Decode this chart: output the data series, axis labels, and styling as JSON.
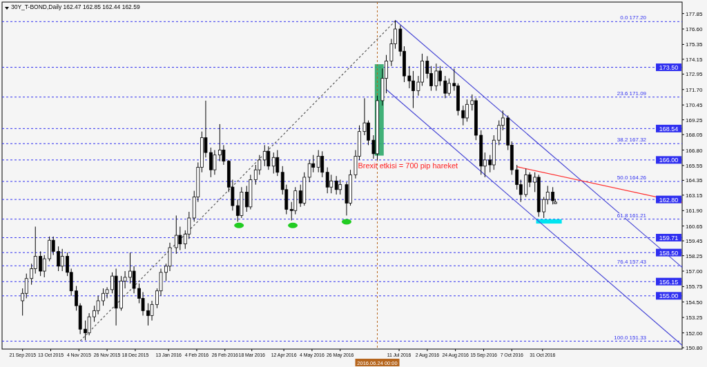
{
  "chart_data": {
    "type": "candlestick",
    "title": "30Y_T-BOND,Daily  162.47 162.85 162.44 162.59",
    "xlim": [
      "2015-09-05",
      "2017-02-17"
    ],
    "xticks": [
      {
        "value": "2015-09-21",
        "label": "21 Sep 2015"
      },
      {
        "value": "2015-10-13",
        "label": "13 Oct 2015"
      },
      {
        "value": "2015-11-04",
        "label": "4 Nov 2015"
      },
      {
        "value": "2015-11-26",
        "label": "26 Nov 2015"
      },
      {
        "value": "2015-12-18",
        "label": "18 Dec 2015"
      },
      {
        "value": "2016-01-13",
        "label": "13 Jan 2016"
      },
      {
        "value": "2016-02-04",
        "label": "4 Feb 2016"
      },
      {
        "value": "2016-02-26",
        "label": "26 Feb 2016"
      },
      {
        "value": "2016-03-18",
        "label": "18 Mar 2016"
      },
      {
        "value": "2016-04-12",
        "label": "12 Apr 2016"
      },
      {
        "value": "2016-05-04",
        "label": "4 May 2016"
      },
      {
        "value": "2016-05-26",
        "label": "26 May 2016"
      },
      {
        "value": "2016-07-11",
        "label": "11 Jul 2016"
      },
      {
        "value": "2016-08-02",
        "label": "2 Aug 2016"
      },
      {
        "value": "2016-08-24",
        "label": "24 Aug 2016"
      },
      {
        "value": "2016-09-15",
        "label": "15 Sep 2016"
      },
      {
        "value": "2016-10-07",
        "label": "7 Oct 2016"
      },
      {
        "value": "2016-10-31",
        "label": "31 Oct 2016"
      }
    ],
    "ylim": [
      150.69,
      178.78
    ],
    "yticks": [
      177.85,
      {
        "value": 176.6,
        "label": "176.60"
      },
      175.35,
      174.15,
      172.95,
      {
        "value": 171.7,
        "label": "171.70"
      },
      170.45,
      169.25,
      168.05,
      {
        "value": 166.8,
        "label": "166.80"
      },
      165.55,
      164.35,
      163.15,
      {
        "value": 161.9,
        "label": "161.90"
      },
      160.65,
      159.45,
      158.25,
      {
        "value": 157,
        "label": "157.00"
      },
      155.75,
      {
        "value": 154.5,
        "label": "154.50"
      },
      153.25,
      {
        "value": 152,
        "label": "152.00"
      },
      {
        "value": 150.8,
        "label": "150.80"
      }
    ],
    "series": [
      {
        "x": [
          "2015-09-21",
          "2015-09-24",
          "2015-09-28",
          "2015-10-01",
          "2015-10-05",
          "2015-10-08",
          "2015-10-12",
          "2015-10-15",
          "2015-10-19",
          "2015-10-22",
          "2015-10-26",
          "2015-10-29",
          "2015-11-02",
          "2015-11-05",
          "2015-11-09",
          "2015-11-12",
          "2015-11-16",
          "2015-11-19",
          "2015-11-23",
          "2015-11-26",
          "2015-11-30",
          "2015-12-03",
          "2015-12-07",
          "2015-12-10",
          "2015-12-14",
          "2015-12-17",
          "2015-12-21",
          "2015-12-24",
          "2015-12-28",
          "2015-12-31",
          "2016-01-04",
          "2016-01-07",
          "2016-01-11",
          "2016-01-14",
          "2016-01-19",
          "2016-01-22",
          "2016-01-26",
          "2016-01-29",
          "2016-02-02",
          "2016-02-05",
          "2016-02-08",
          "2016-02-11",
          "2016-02-15",
          "2016-02-18",
          "2016-02-22",
          "2016-02-25",
          "2016-02-29",
          "2016-03-03",
          "2016-03-07",
          "2016-03-10",
          "2016-03-14",
          "2016-03-17",
          "2016-03-21",
          "2016-03-24",
          "2016-03-28",
          "2016-03-31",
          "2016-04-04",
          "2016-04-07",
          "2016-04-11",
          "2016-04-14",
          "2016-04-18",
          "2016-04-21",
          "2016-04-25",
          "2016-04-28",
          "2016-05-02",
          "2016-05-05",
          "2016-05-09",
          "2016-05-12",
          "2016-05-16",
          "2016-05-19",
          "2016-05-23",
          "2016-05-26",
          "2016-05-31",
          "2016-06-03",
          "2016-06-07",
          "2016-06-10",
          "2016-06-14",
          "2016-06-17",
          "2016-06-21",
          "2016-06-24",
          "2016-06-28",
          "2016-07-01",
          "2016-07-05",
          "2016-07-08",
          "2016-07-12",
          "2016-07-15",
          "2016-07-19",
          "2016-07-22",
          "2016-07-26",
          "2016-07-29",
          "2016-08-02",
          "2016-08-05",
          "2016-08-09",
          "2016-08-12",
          "2016-08-16",
          "2016-08-19",
          "2016-08-23",
          "2016-08-26",
          "2016-08-30",
          "2016-09-02",
          "2016-09-06",
          "2016-09-09",
          "2016-09-13",
          "2016-09-16",
          "2016-09-20",
          "2016-09-23",
          "2016-09-27",
          "2016-09-30",
          "2016-10-04",
          "2016-10-07",
          "2016-10-11",
          "2016-10-14",
          "2016-10-18",
          "2016-10-21",
          "2016-10-25",
          "2016-10-28",
          "2016-11-01",
          "2016-11-04",
          "2016-11-08",
          "2016-11-10"
        ],
        "ohlc": [
          [
            154.6,
            155.6,
            153.4,
            155.2
          ],
          [
            155.2,
            156.8,
            154.8,
            156.4
          ],
          [
            156.4,
            157.6,
            155.9,
            157.2
          ],
          [
            157.2,
            160.6,
            156.8,
            158.2
          ],
          [
            158.2,
            158.6,
            156.6,
            157.0
          ],
          [
            157.0,
            158.3,
            156.5,
            158.0
          ],
          [
            158.0,
            159.8,
            157.8,
            159.5
          ],
          [
            159.5,
            159.8,
            158.3,
            158.6
          ],
          [
            158.6,
            159.0,
            157.0,
            157.4
          ],
          [
            157.4,
            158.8,
            157.0,
            158.2
          ],
          [
            158.2,
            158.5,
            156.6,
            156.9
          ],
          [
            156.9,
            157.2,
            155.0,
            155.4
          ],
          [
            155.4,
            155.8,
            153.8,
            154.2
          ],
          [
            154.2,
            154.4,
            151.9,
            152.3
          ],
          [
            152.3,
            153.0,
            151.4,
            152.0
          ],
          [
            152.0,
            153.6,
            151.8,
            153.3
          ],
          [
            153.3,
            154.2,
            152.9,
            153.8
          ],
          [
            153.8,
            155.0,
            153.5,
            154.6
          ],
          [
            154.6,
            155.6,
            154.2,
            155.2
          ],
          [
            155.2,
            155.7,
            154.8,
            155.5
          ],
          [
            155.5,
            156.9,
            155.2,
            156.6
          ],
          [
            156.6,
            157.2,
            152.6,
            154.0
          ],
          [
            154.0,
            156.6,
            153.8,
            156.2
          ],
          [
            156.2,
            157.0,
            155.6,
            156.5
          ],
          [
            156.5,
            158.5,
            156.0,
            157.0
          ],
          [
            157.0,
            157.4,
            155.2,
            155.6
          ],
          [
            155.6,
            156.0,
            154.4,
            154.8
          ],
          [
            154.8,
            155.3,
            153.4,
            153.8
          ],
          [
            153.8,
            154.4,
            152.6,
            153.4
          ],
          [
            153.4,
            154.6,
            153.0,
            154.3
          ],
          [
            154.3,
            155.6,
            154.0,
            155.4
          ],
          [
            155.4,
            157.2,
            155.0,
            156.9
          ],
          [
            156.9,
            157.6,
            156.2,
            157.4
          ],
          [
            157.4,
            159.3,
            157.0,
            158.9
          ],
          [
            158.9,
            161.5,
            158.4,
            159.9
          ],
          [
            159.9,
            160.6,
            158.7,
            159.2
          ],
          [
            159.2,
            160.3,
            158.8,
            160.0
          ],
          [
            160.0,
            161.8,
            159.6,
            161.3
          ],
          [
            161.3,
            163.5,
            161.0,
            163.0
          ],
          [
            163.0,
            165.8,
            162.6,
            165.4
          ],
          [
            165.4,
            168.3,
            165.0,
            167.8
          ],
          [
            167.8,
            170.8,
            166.2,
            166.6
          ],
          [
            166.6,
            167.0,
            164.6,
            165.2
          ],
          [
            165.2,
            166.8,
            164.8,
            166.4
          ],
          [
            166.4,
            168.9,
            165.9,
            166.8
          ],
          [
            166.8,
            167.2,
            165.6,
            165.9
          ],
          [
            165.9,
            166.0,
            163.4,
            163.8
          ],
          [
            163.8,
            164.4,
            161.9,
            162.3
          ],
          [
            162.3,
            162.8,
            161.0,
            161.5
          ],
          [
            161.5,
            163.8,
            161.3,
            163.4
          ],
          [
            163.4,
            163.9,
            161.8,
            162.2
          ],
          [
            162.2,
            164.8,
            162.0,
            164.4
          ],
          [
            164.4,
            165.6,
            164.0,
            165.2
          ],
          [
            165.2,
            166.4,
            164.8,
            166.0
          ],
          [
            166.0,
            167.2,
            165.5,
            166.7
          ],
          [
            166.7,
            167.1,
            165.2,
            165.5
          ],
          [
            165.5,
            166.6,
            164.9,
            166.2
          ],
          [
            166.2,
            166.8,
            164.7,
            165.0
          ],
          [
            165.0,
            165.5,
            163.2,
            163.6
          ],
          [
            163.6,
            164.0,
            161.6,
            162.0
          ],
          [
            162.0,
            162.6,
            161.1,
            161.9
          ],
          [
            161.9,
            163.8,
            161.6,
            163.5
          ],
          [
            163.5,
            164.0,
            162.2,
            162.5
          ],
          [
            162.5,
            165.0,
            162.3,
            164.6
          ],
          [
            164.6,
            166.0,
            164.2,
            165.7
          ],
          [
            165.7,
            166.4,
            165.0,
            165.4
          ],
          [
            165.4,
            166.8,
            165.0,
            166.3
          ],
          [
            166.3,
            166.7,
            164.6,
            165.0
          ],
          [
            165.0,
            165.4,
            163.3,
            163.8
          ],
          [
            163.8,
            164.8,
            163.3,
            164.3
          ],
          [
            164.3,
            164.7,
            163.2,
            163.6
          ],
          [
            163.6,
            164.4,
            163.2,
            164.0
          ],
          [
            164.0,
            164.2,
            161.5,
            162.5
          ],
          [
            162.5,
            165.2,
            162.3,
            164.8
          ],
          [
            164.8,
            166.8,
            164.5,
            166.3
          ],
          [
            166.3,
            168.8,
            166.0,
            168.3
          ],
          [
            168.3,
            171.0,
            168.0,
            169.0
          ],
          [
            169.0,
            169.2,
            167.2,
            167.6
          ],
          [
            167.6,
            168.0,
            166.1,
            166.5
          ],
          [
            166.5,
            171.2,
            166.0,
            170.8
          ],
          [
            170.8,
            173.4,
            170.4,
            172.6
          ],
          [
            172.6,
            174.5,
            171.4,
            174.0
          ],
          [
            174.0,
            175.8,
            173.6,
            175.4
          ],
          [
            175.4,
            177.3,
            175.0,
            176.6
          ],
          [
            176.6,
            176.9,
            174.4,
            174.8
          ],
          [
            174.8,
            175.2,
            172.3,
            172.8
          ],
          [
            172.8,
            173.6,
            171.8,
            172.4
          ],
          [
            172.4,
            173.2,
            170.2,
            171.6
          ],
          [
            171.6,
            172.8,
            171.2,
            172.3
          ],
          [
            172.3,
            174.6,
            172.0,
            174.0
          ],
          [
            174.0,
            174.4,
            172.6,
            173.0
          ],
          [
            173.0,
            173.6,
            171.6,
            172.0
          ],
          [
            172.0,
            173.8,
            171.6,
            173.2
          ],
          [
            173.2,
            173.6,
            172.0,
            172.4
          ],
          [
            172.4,
            172.8,
            171.0,
            171.4
          ],
          [
            171.4,
            172.6,
            171.2,
            172.2
          ],
          [
            172.2,
            173.4,
            171.6,
            172.0
          ],
          [
            172.0,
            172.2,
            169.6,
            170.0
          ],
          [
            170.0,
            170.4,
            168.8,
            169.4
          ],
          [
            169.4,
            170.9,
            169.1,
            170.5
          ],
          [
            170.5,
            171.3,
            170.0,
            170.8
          ],
          [
            170.8,
            171.0,
            167.6,
            168.0
          ],
          [
            168.0,
            168.4,
            164.8,
            165.5
          ],
          [
            165.5,
            166.6,
            164.6,
            166.0
          ],
          [
            166.0,
            166.4,
            165.0,
            165.6
          ],
          [
            165.6,
            168.0,
            165.2,
            167.6
          ],
          [
            167.6,
            169.2,
            167.2,
            168.8
          ],
          [
            168.8,
            170.0,
            168.4,
            169.4
          ],
          [
            169.4,
            169.6,
            166.8,
            167.2
          ],
          [
            167.2,
            167.5,
            164.8,
            165.2
          ],
          [
            165.2,
            165.6,
            163.6,
            164.0
          ],
          [
            164.0,
            164.4,
            162.6,
            163.2
          ],
          [
            163.2,
            165.3,
            163.0,
            164.8
          ],
          [
            164.8,
            165.0,
            163.8,
            164.2
          ],
          [
            164.2,
            165.0,
            163.4,
            164.6
          ],
          [
            164.6,
            164.8,
            161.4,
            161.8
          ],
          [
            161.8,
            163.0,
            161.3,
            162.8
          ],
          [
            162.8,
            163.9,
            162.4,
            163.4
          ],
          [
            163.4,
            163.8,
            162.4,
            162.7
          ],
          [
            162.47,
            162.85,
            162.44,
            162.59
          ]
        ]
      },
      {
        "type": "line",
        "x": [
          "2015-11-05",
          "2016-07-08"
        ],
        "values": [
          151.35,
          177.25
        ],
        "color": "#555555",
        "line_style": "dashed"
      },
      {
        "type": "line",
        "x": [
          "2016-07-08",
          "2017-02-17"
        ],
        "values": [
          177.3,
          157.3
        ],
        "color": "#4a4ad6",
        "line_style": "solid"
      },
      {
        "type": "line",
        "x": [
          "2016-07-01",
          "2017-02-17"
        ],
        "values": [
          171.7,
          151.0
        ],
        "color": "#4a4ad6",
        "line_style": "solid"
      },
      {
        "type": "line",
        "x": [
          "2016-10-11",
          "2017-02-17"
        ],
        "values": [
          165.45,
          162.55
        ],
        "color": "#ff3030",
        "line_style": "solid"
      }
    ],
    "ref_lines": [
      {
        "axis": "y",
        "value": 177.2,
        "label": null,
        "color": "#2f2ff0",
        "line_style": "dashed"
      },
      {
        "axis": "y",
        "value": 173.5,
        "label": "173.50",
        "color": "#2f2ff0",
        "line_style": "dashed"
      },
      {
        "axis": "y",
        "value": 171.09,
        "label": null,
        "color": "#2f2ff0",
        "line_style": "dashed"
      },
      {
        "axis": "y",
        "value": 168.54,
        "label": "168.54",
        "color": "#2f2ff0",
        "line_style": "dashed"
      },
      {
        "axis": "y",
        "value": 167.32,
        "label": null,
        "color": "#2f2ff0",
        "line_style": "dashed"
      },
      {
        "axis": "y",
        "value": 166.0,
        "label": "166.00",
        "color": "#2f2ff0",
        "line_style": "dashed"
      },
      {
        "axis": "y",
        "value": 164.26,
        "label": null,
        "color": "#2f2ff0",
        "line_style": "dashed"
      },
      {
        "axis": "y",
        "value": 162.8,
        "label": "162.80",
        "color": "#2f2ff0",
        "line_style": "dashed"
      },
      {
        "axis": "y",
        "value": 161.21,
        "label": null,
        "color": "#2f2ff0",
        "line_style": "dashed"
      },
      {
        "axis": "y",
        "value": 159.71,
        "label": "159.71",
        "color": "#2f2ff0",
        "line_style": "dashed"
      },
      {
        "axis": "y",
        "value": 158.5,
        "label": "158.50",
        "color": "#2f2ff0",
        "line_style": "dashed"
      },
      {
        "axis": "y",
        "value": 157.43,
        "label": null,
        "color": "#2f2ff0",
        "line_style": "dashed"
      },
      {
        "axis": "y",
        "value": 156.15,
        "label": "156.15",
        "color": "#2f2ff0",
        "line_style": "dashed"
      },
      {
        "axis": "y",
        "value": 155.0,
        "label": "155.00",
        "color": "#2f2ff0",
        "line_style": "dashed"
      },
      {
        "axis": "y",
        "value": 151.33,
        "label": null,
        "color": "#2f2ff0",
        "line_style": "dashed"
      },
      {
        "axis": "x",
        "value": "2016-06-24",
        "label": "2016.06.24 00:00",
        "color": "#b5651d",
        "line_style": "dashed"
      }
    ],
    "annotations": [
      {
        "text": "0.0 177.20",
        "x": "2017-01-20",
        "y": 177.2
      },
      {
        "text": "23.6 171.09",
        "x": "2017-01-20",
        "y": 171.09
      },
      {
        "text": "38.2 167.32",
        "x": "2017-01-20",
        "y": 167.32
      },
      {
        "text": "50.0 164.26",
        "x": "2017-01-20",
        "y": 164.26
      },
      {
        "text": "61.8 161.21",
        "x": "2017-01-20",
        "y": 161.21
      },
      {
        "text": "76.4 157.43",
        "x": "2017-01-20",
        "y": 157.43
      },
      {
        "text": "100.0 151.33",
        "x": "2017-01-20",
        "y": 151.33
      },
      "Brexit etkisi = 700 pip hareket"
    ]
  }
}
